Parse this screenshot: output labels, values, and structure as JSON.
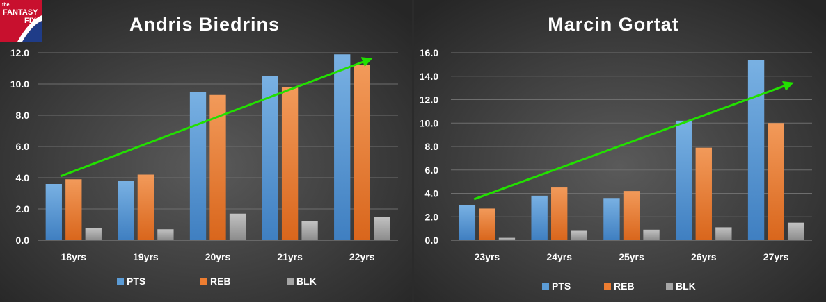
{
  "logo": {
    "small": "the",
    "line1": "FANTASY",
    "line2": "FIX"
  },
  "colors": {
    "PTS": "#5b9bd5",
    "REB": "#ed7d31",
    "BLK": "#a5a5a5",
    "trend": "#22e000"
  },
  "chart_data": [
    {
      "type": "bar",
      "title": "Andris Biedrins",
      "categories": [
        "18yrs",
        "19yrs",
        "20yrs",
        "21yrs",
        "22yrs"
      ],
      "series": [
        {
          "name": "PTS",
          "values": [
            3.6,
            3.8,
            9.5,
            10.5,
            11.9
          ]
        },
        {
          "name": "REB",
          "values": [
            3.9,
            4.2,
            9.3,
            9.8,
            11.2
          ]
        },
        {
          "name": "BLK",
          "values": [
            0.8,
            0.7,
            1.7,
            1.2,
            1.5
          ]
        }
      ],
      "ylim": [
        0,
        12
      ],
      "yticks": [
        "0.0",
        "2.0",
        "4.0",
        "6.0",
        "8.0",
        "10.0",
        "12.0"
      ],
      "trend_arrow": {
        "from": [
          0,
          4.1
        ],
        "to": [
          4.3,
          11.6
        ]
      },
      "grid": true,
      "legend": "bottom"
    },
    {
      "type": "bar",
      "title": "Marcin Gortat",
      "categories": [
        "23yrs",
        "24yrs",
        "25yrs",
        "26yrs",
        "27yrs"
      ],
      "series": [
        {
          "name": "PTS",
          "values": [
            3.0,
            3.8,
            3.6,
            10.2,
            15.4
          ]
        },
        {
          "name": "REB",
          "values": [
            2.7,
            4.5,
            4.2,
            7.9,
            10.0
          ]
        },
        {
          "name": "BLK",
          "values": [
            0.2,
            0.8,
            0.9,
            1.1,
            1.5
          ]
        }
      ],
      "ylim": [
        0,
        16
      ],
      "yticks": [
        "0.0",
        "2.0",
        "4.0",
        "6.0",
        "8.0",
        "10.0",
        "12.0",
        "14.0",
        "16.0"
      ],
      "trend_arrow": {
        "from": [
          0,
          3.5
        ],
        "to": [
          4.4,
          13.4
        ]
      },
      "grid": true,
      "legend": "bottom"
    }
  ]
}
